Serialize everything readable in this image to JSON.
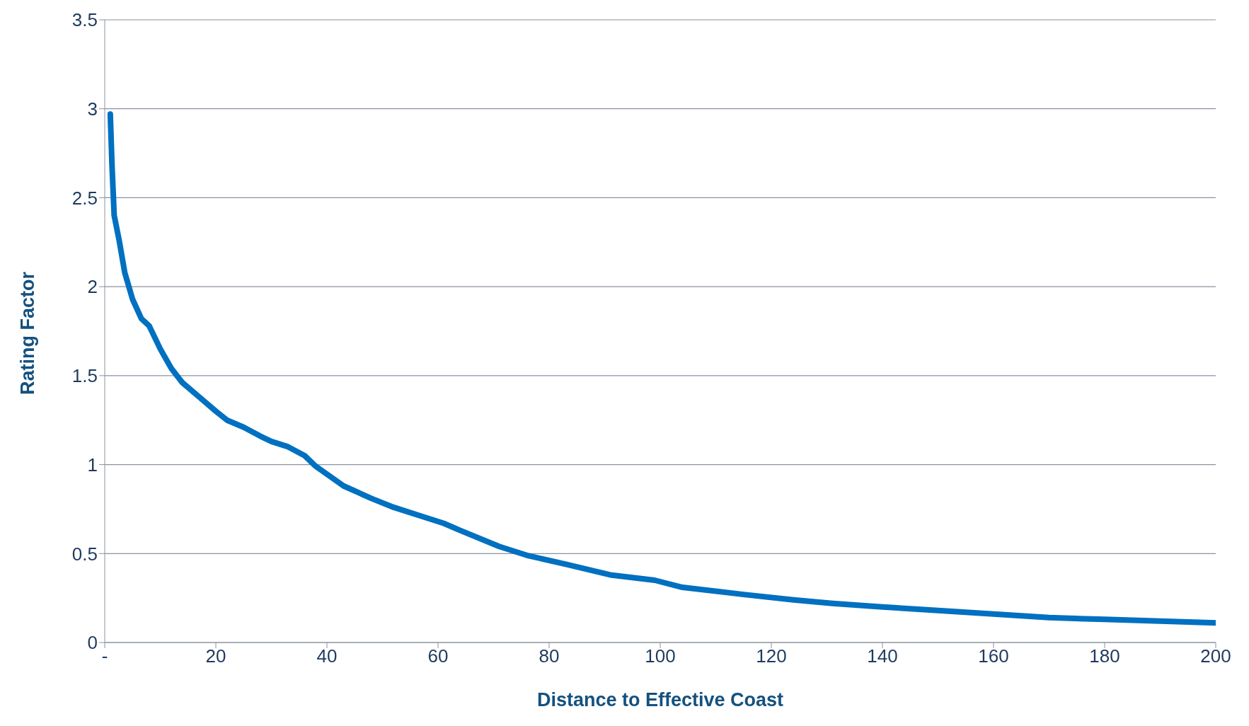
{
  "chart_data": {
    "type": "line",
    "xlabel": "Distance to Effective Coast",
    "ylabel": "Rating Factor",
    "x": [
      1,
      1.3,
      1.7,
      2.6,
      3.6,
      5,
      6.6,
      8,
      10,
      12,
      14,
      17,
      20,
      22,
      25,
      28,
      30,
      33,
      36,
      38,
      43,
      48,
      52,
      57,
      61,
      64,
      71,
      76,
      83,
      91,
      99,
      104,
      115,
      124,
      131,
      140,
      150,
      160,
      170,
      180,
      200
    ],
    "series": [
      {
        "color": "#0070c0",
        "values": [
          2.97,
          2.69,
          2.4,
          2.26,
          2.08,
          1.93,
          1.82,
          1.78,
          1.65,
          1.54,
          1.46,
          1.38,
          1.3,
          1.25,
          1.21,
          1.16,
          1.13,
          1.1,
          1.05,
          0.99,
          0.88,
          0.81,
          0.76,
          0.71,
          0.67,
          0.63,
          0.54,
          0.49,
          0.44,
          0.38,
          0.35,
          0.31,
          0.27,
          0.24,
          0.22,
          0.2,
          0.18,
          0.16,
          0.14,
          0.13,
          0.11
        ]
      }
    ],
    "xlim": [
      0,
      200
    ],
    "xticks": [
      {
        "value": 0,
        "label": "-"
      },
      20,
      40,
      60,
      80,
      100,
      120,
      140,
      160,
      180,
      200
    ],
    "ylim": [
      0,
      3.5
    ],
    "yticks": [
      0,
      0.5,
      1,
      1.5,
      2,
      2.5,
      3,
      3.5
    ],
    "grid": "y",
    "marker": "none",
    "line_style": "solid"
  }
}
